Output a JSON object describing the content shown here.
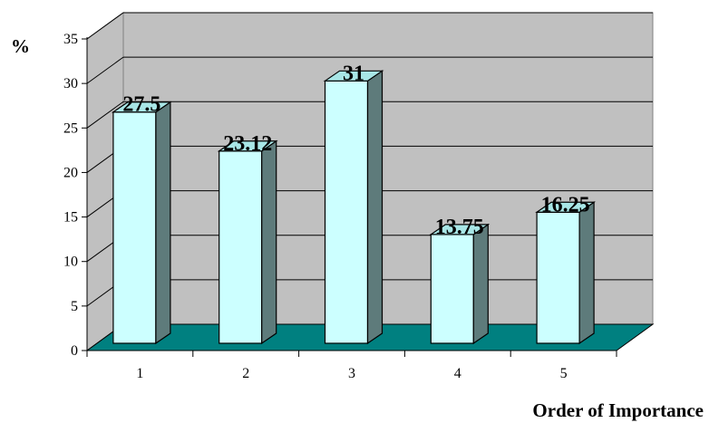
{
  "chart_data": {
    "type": "bar",
    "title": "",
    "xlabel": "Order of Importance",
    "ylabel": "%",
    "categories": [
      "1",
      "2",
      "3",
      "4",
      "5"
    ],
    "values": [
      27.5,
      23.12,
      31,
      13.75,
      16.25
    ],
    "data_labels": [
      "27.5",
      "23.12",
      "31",
      "13.75",
      "16.25"
    ],
    "ylim": [
      0,
      35
    ],
    "yticks": [
      "0",
      "5",
      "10",
      "15",
      "20",
      "25",
      "30",
      "35"
    ],
    "grid": true,
    "style": "3d",
    "colors": {
      "bar_front": "#CCFFFF",
      "bar_side": "#5E7B7B",
      "bar_top": "#A8E6E6",
      "back_wall": "#C0C0C0",
      "side_wall": "#C0C0C0",
      "floor": "#008080"
    }
  }
}
